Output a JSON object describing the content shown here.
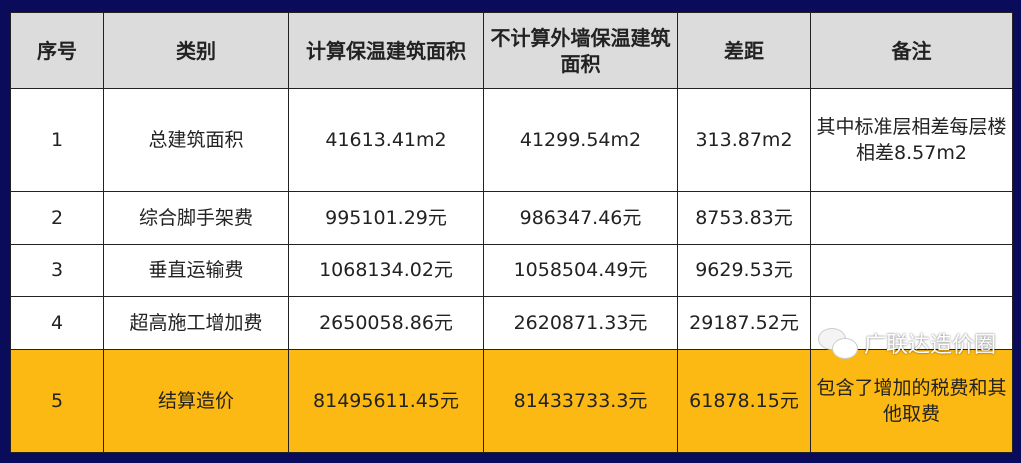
{
  "headers": [
    "序号",
    "类别",
    "计算保温建筑面积",
    "不计算外墙保温建筑面积",
    "差距",
    "备注"
  ],
  "rows": [
    [
      "1",
      "总建筑面积",
      "41613.41m2",
      "41299.54m2",
      "313.87m2",
      "其中标准层相差每层楼相差8.57m2"
    ],
    [
      "2",
      "综合脚手架费",
      "995101.29元",
      "986347.46元",
      "8753.83元",
      ""
    ],
    [
      "3",
      "垂直运输费",
      "1068134.02元",
      "1058504.49元",
      "9629.53元",
      ""
    ],
    [
      "4",
      "超高施工增加费",
      "2650058.86元",
      "2620871.33元",
      "29187.52元",
      ""
    ],
    [
      "5",
      "结算造价",
      "81495611.45元",
      "81433733.3元",
      "61878.15元",
      "包含了增加的税费和其他取费"
    ]
  ],
  "watermark": {
    "text": "广联达造价圈",
    "icon": "wechat-icon"
  },
  "colors": {
    "frame": "#0b0b5c",
    "header_bg": "#dcdcdc",
    "total_row_bg": "#fdb913"
  }
}
